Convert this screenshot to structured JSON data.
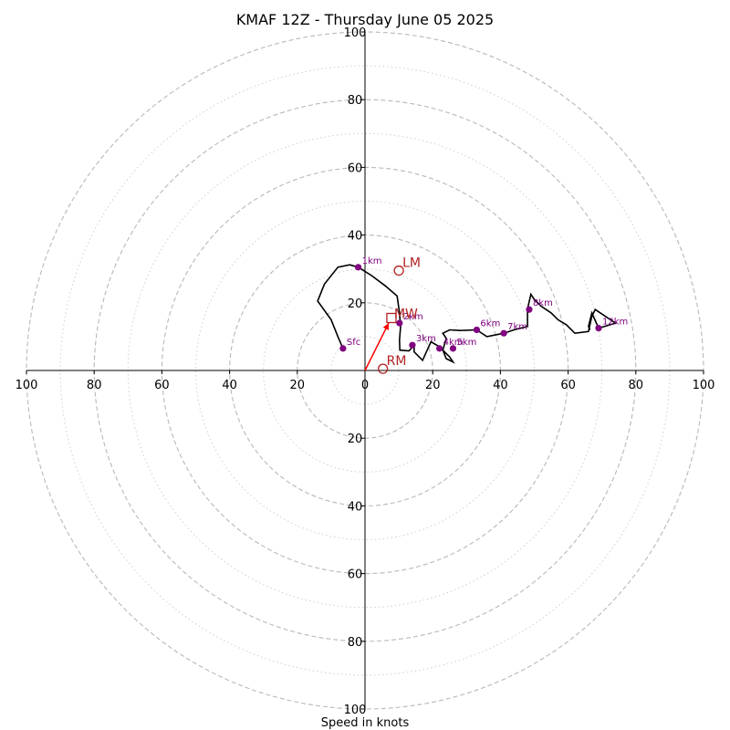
{
  "chart_data": {
    "type": "hodograph",
    "title": "KMAF 12Z - Thursday June 05 2025",
    "xlabel": "Speed in knots",
    "rmax": 100,
    "ring_major": [
      20,
      40,
      60,
      80,
      100
    ],
    "ring_minor": [
      10,
      30,
      50,
      70,
      90
    ],
    "x_ticks": [
      {
        "value": -100,
        "label": "100"
      },
      {
        "value": -80,
        "label": "80"
      },
      {
        "value": -60,
        "label": "60"
      },
      {
        "value": -40,
        "label": "40"
      },
      {
        "value": -20,
        "label": "20"
      },
      {
        "value": 0,
        "label": "0"
      },
      {
        "value": 20,
        "label": "20"
      },
      {
        "value": 40,
        "label": "40"
      },
      {
        "value": 60,
        "label": "60"
      },
      {
        "value": 80,
        "label": "80"
      },
      {
        "value": 100,
        "label": "100"
      }
    ],
    "y_ticks": [
      {
        "value": 100,
        "label": "100"
      },
      {
        "value": 80,
        "label": "80"
      },
      {
        "value": 60,
        "label": "60"
      },
      {
        "value": 40,
        "label": "40"
      },
      {
        "value": 20,
        "label": "20"
      },
      {
        "value": -20,
        "label": "20"
      },
      {
        "value": -40,
        "label": "40"
      },
      {
        "value": -60,
        "label": "60"
      },
      {
        "value": -80,
        "label": "80"
      },
      {
        "value": -100,
        "label": "100"
      }
    ],
    "hodograph_line": {
      "color": "#000000",
      "points": [
        [
          -6.5,
          6.5
        ],
        [
          -8,
          10
        ],
        [
          -10,
          15
        ],
        [
          -14,
          20.5
        ],
        [
          -12,
          25.5
        ],
        [
          -8,
          30.5
        ],
        [
          -4.5,
          31.2
        ],
        [
          -2,
          30.5
        ],
        [
          2,
          28
        ],
        [
          6,
          25
        ],
        [
          9.5,
          22
        ],
        [
          10.2,
          17
        ],
        [
          10.5,
          13
        ],
        [
          10.2,
          9
        ],
        [
          10.3,
          6
        ],
        [
          13,
          5.8
        ],
        [
          14.5,
          7.5
        ],
        [
          14.5,
          5.5
        ],
        [
          17,
          3
        ],
        [
          19.5,
          8.5
        ],
        [
          22,
          7
        ],
        [
          24,
          5
        ],
        [
          25,
          4
        ],
        [
          26,
          2.5
        ],
        [
          24,
          3.5
        ],
        [
          23,
          6
        ],
        [
          24,
          9.5
        ],
        [
          23,
          11
        ],
        [
          25,
          12
        ],
        [
          28,
          11.8
        ],
        [
          33,
          12
        ],
        [
          36,
          10
        ],
        [
          41,
          11
        ],
        [
          44,
          12
        ],
        [
          48,
          13
        ],
        [
          48,
          18.2
        ],
        [
          49,
          22.5
        ],
        [
          50,
          21
        ],
        [
          52,
          19
        ],
        [
          55,
          17
        ],
        [
          57,
          15
        ],
        [
          59.5,
          13.5
        ],
        [
          62,
          11
        ],
        [
          66,
          11.5
        ],
        [
          67,
          16
        ],
        [
          68,
          18
        ],
        [
          74,
          14
        ],
        [
          69,
          12.5
        ],
        [
          67,
          17
        ],
        [
          66,
          13
        ],
        [
          66.5,
          12
        ]
      ]
    },
    "height_markers": {
      "color": "#800080",
      "points": [
        {
          "label": "Sfc",
          "u": -6.5,
          "v": 6.5
        },
        {
          "label": "1km",
          "u": -2,
          "v": 30.5
        },
        {
          "label": "2km",
          "u": 10.2,
          "v": 14
        },
        {
          "label": "3km",
          "u": 14,
          "v": 7.5
        },
        {
          "label": "4km",
          "u": 22,
          "v": 6.5
        },
        {
          "label": "5km",
          "u": 26,
          "v": 6.5
        },
        {
          "label": "6km",
          "u": 33,
          "v": 12
        },
        {
          "label": "7km",
          "u": 41,
          "v": 11
        },
        {
          "label": "8km",
          "u": 48.5,
          "v": 18
        },
        {
          "label": "12km",
          "u": 69,
          "v": 12.5
        }
      ]
    },
    "storm_motion": {
      "color": "#b22222",
      "LM": {
        "label": "LM",
        "u": 10,
        "v": 29.5
      },
      "RM": {
        "label": "RM",
        "u": 5.3,
        "v": 0.5
      },
      "MW": {
        "label": "MW",
        "u": 7.8,
        "v": 15.5
      }
    },
    "shear_vector": {
      "color": "#ff0000",
      "from": [
        0,
        0
      ],
      "to": [
        7,
        14
      ]
    }
  }
}
